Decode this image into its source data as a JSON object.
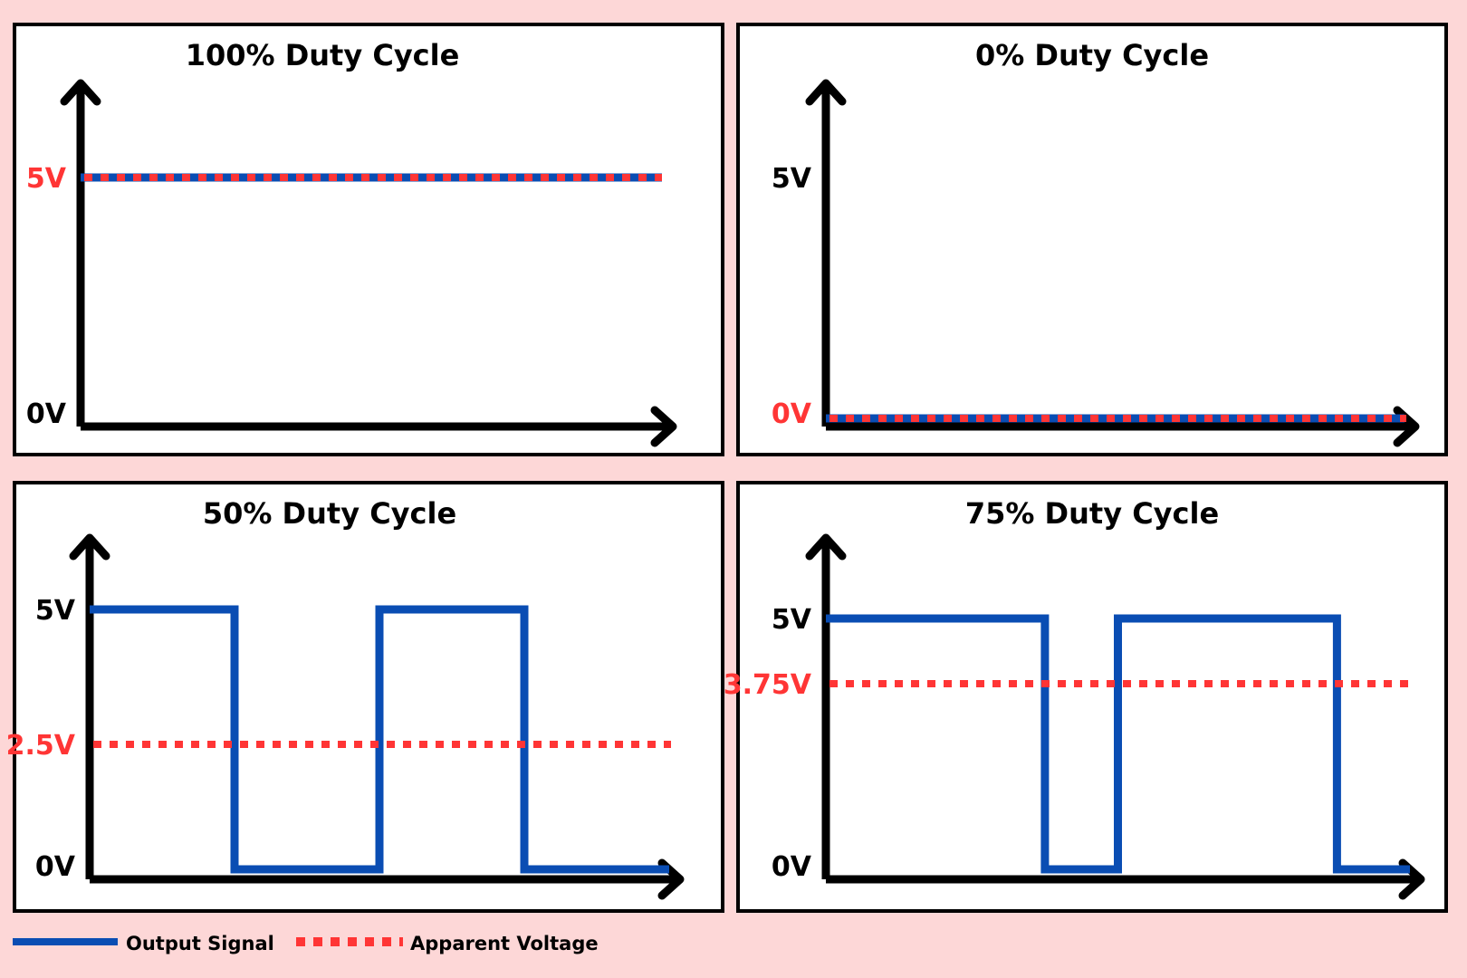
{
  "colors": {
    "background": "#fdd7d7",
    "panel": "#ffffff",
    "axis": "#000000",
    "output_signal": "#0a4db3",
    "apparent_voltage": "#ff3535",
    "label_black": "#000000",
    "label_red": "#ff3535"
  },
  "panels": [
    {
      "title": "100% Duty Cycle",
      "labels": [
        {
          "text": "5V",
          "value": 5,
          "color": "red"
        },
        {
          "text": "0V",
          "value": 0,
          "color": "black"
        }
      ],
      "signal": [
        [
          0,
          5
        ],
        [
          1,
          5
        ]
      ],
      "apparent": 5
    },
    {
      "title": "0% Duty Cycle",
      "labels": [
        {
          "text": "5V",
          "value": 5,
          "color": "black"
        },
        {
          "text": "0V",
          "value": 0,
          "color": "red"
        }
      ],
      "signal": [
        [
          0,
          0
        ],
        [
          1,
          0
        ]
      ],
      "apparent": 0
    },
    {
      "title": "50% Duty Cycle",
      "labels": [
        {
          "text": "5V",
          "value": 5,
          "color": "black"
        },
        {
          "text": "2.5V",
          "value": 2.5,
          "color": "red"
        },
        {
          "text": "0V",
          "value": 0,
          "color": "black"
        }
      ],
      "signal": [
        [
          0,
          5
        ],
        [
          0.25,
          5
        ],
        [
          0.25,
          0
        ],
        [
          0.5,
          0
        ],
        [
          0.5,
          5
        ],
        [
          0.75,
          5
        ],
        [
          0.75,
          0
        ],
        [
          1,
          0
        ]
      ],
      "apparent": 2.5
    },
    {
      "title": "75% Duty Cycle",
      "labels": [
        {
          "text": "5V",
          "value": 5,
          "color": "black"
        },
        {
          "text": "3.75V",
          "value": 3.75,
          "color": "red"
        },
        {
          "text": "0V",
          "value": 0,
          "color": "black"
        }
      ],
      "signal": [
        [
          0,
          5
        ],
        [
          0.375,
          5
        ],
        [
          0.375,
          0
        ],
        [
          0.5,
          0
        ],
        [
          0.5,
          5
        ],
        [
          0.875,
          5
        ],
        [
          0.875,
          0
        ],
        [
          1,
          0
        ]
      ],
      "apparent": 3.75
    }
  ],
  "legend": {
    "output_signal": "Output Signal",
    "apparent_voltage": "Apparent Voltage"
  }
}
